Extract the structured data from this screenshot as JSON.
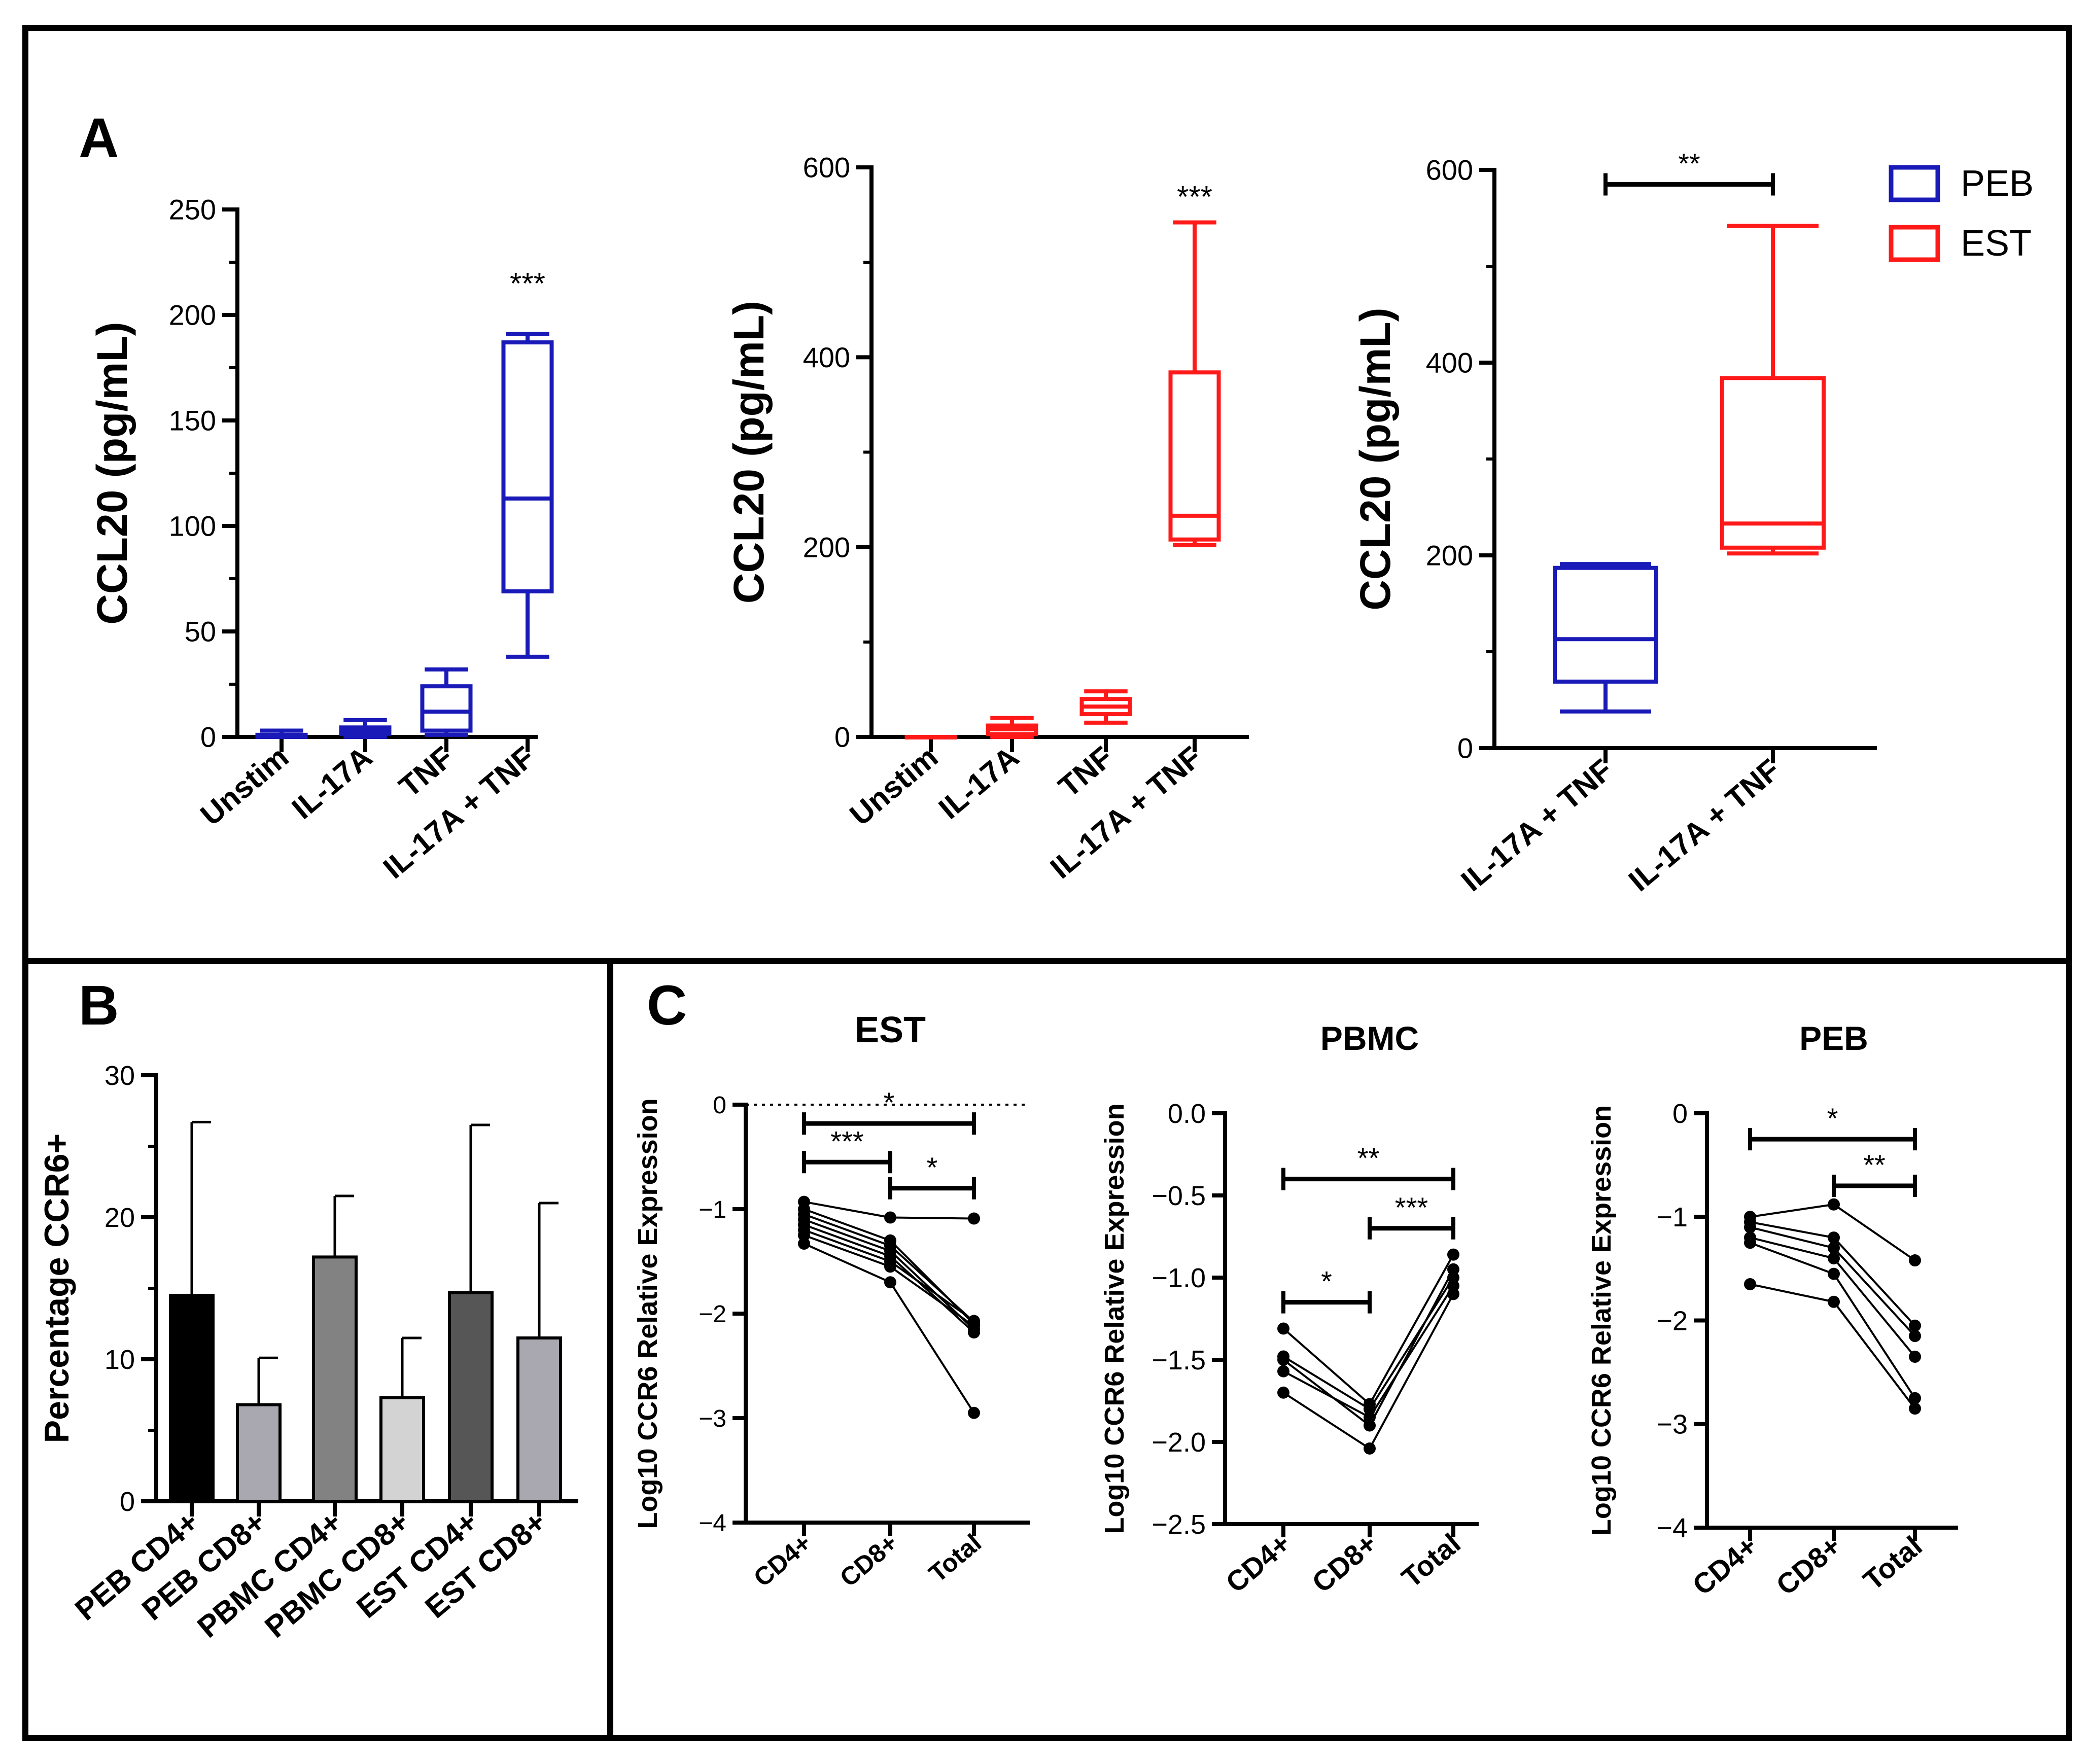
{
  "panel_labels": {
    "a": "A",
    "b": "B",
    "c": "C"
  },
  "colors": {
    "peb": "#1a1ab8",
    "est": "#ff1a1a"
  },
  "chart_data": [
    {
      "id": "A1",
      "type": "box",
      "color": "#1a1ab8",
      "ylabel": "CCL20 (pg/mL)",
      "ylim": [
        0,
        250
      ],
      "yticks": [
        0,
        50,
        100,
        150,
        200,
        250
      ],
      "ytick_labels": [
        "0",
        "50",
        "100",
        "150",
        "200",
        "250"
      ],
      "minor_ticks": [
        25,
        75,
        125,
        175,
        225
      ],
      "categories": [
        "Unstim",
        "IL-17A",
        "TNF",
        "IL-17A + TNF"
      ],
      "boxes": [
        {
          "min": 0,
          "q1": 0,
          "median": 0.5,
          "q3": 1,
          "max": 3
        },
        {
          "min": 0,
          "q1": 1.5,
          "median": 3,
          "q3": 4.5,
          "max": 8
        },
        {
          "min": 1,
          "q1": 3,
          "median": 12,
          "q3": 24,
          "max": 32
        },
        {
          "min": 38,
          "q1": 69,
          "median": 113,
          "q3": 187,
          "max": 191
        }
      ],
      "annotations": [
        {
          "cat": 3,
          "y": 210,
          "text": "***"
        }
      ]
    },
    {
      "id": "A2",
      "type": "box",
      "color": "#ff1a1a",
      "ylabel": "CCL20 (pg/mL)",
      "ylim": [
        0,
        600
      ],
      "yticks": [
        0,
        200,
        400,
        600
      ],
      "ytick_labels": [
        "0",
        "200",
        "400",
        "600"
      ],
      "minor_ticks": [
        100,
        300,
        500
      ],
      "categories": [
        "Unstim",
        "IL-17A",
        "TNF",
        "IL-17A + TNF"
      ],
      "boxes": [
        {
          "min": 0,
          "q1": 0,
          "median": 0,
          "q3": 0,
          "max": 0
        },
        {
          "min": 0,
          "q1": 3,
          "median": 8,
          "q3": 12,
          "max": 20
        },
        {
          "min": 15,
          "q1": 24,
          "median": 32,
          "q3": 40,
          "max": 48
        },
        {
          "min": 202,
          "q1": 208,
          "median": 233,
          "q3": 384,
          "max": 542
        }
      ],
      "annotations": [
        {
          "cat": 3,
          "y": 558,
          "text": "***"
        }
      ]
    },
    {
      "id": "A3",
      "type": "box",
      "ylabel": "CCL20 (pg/mL)",
      "ylim": [
        0,
        600
      ],
      "yticks": [
        0,
        200,
        400,
        600
      ],
      "ytick_labels": [
        "0",
        "200",
        "400",
        "600"
      ],
      "minor_ticks": [
        100,
        300,
        500
      ],
      "categories": [
        "IL-17A + TNF",
        "IL-17A + TNF"
      ],
      "boxes": [
        {
          "min": 38,
          "q1": 69,
          "median": 113,
          "q3": 187,
          "max": 191,
          "color": "#1a1ab8"
        },
        {
          "min": 202,
          "q1": 208,
          "median": 233,
          "q3": 384,
          "max": 542,
          "color": "#ff1a1a"
        }
      ],
      "brackets": [
        {
          "from": 0,
          "to": 1,
          "y": 585,
          "text": "**"
        }
      ],
      "legend": [
        {
          "label": "PEB",
          "color": "#1a1ab8"
        },
        {
          "label": "EST",
          "color": "#ff1a1a"
        }
      ],
      "legend_position": "top-right"
    },
    {
      "id": "B",
      "type": "bar",
      "ylabel": "Percentage CCR6+",
      "ylim": [
        0,
        30
      ],
      "yticks": [
        0,
        10,
        20,
        30
      ],
      "ytick_labels": [
        "0",
        "10",
        "20",
        "30"
      ],
      "minor_ticks": [
        5,
        15,
        25
      ],
      "categories": [
        "PEB CD4+",
        "PEB CD8+",
        "PBMC CD4+",
        "PBMC CD8+",
        "EST CD4+",
        "EST CD8+"
      ],
      "values": [
        14.5,
        6.8,
        17.2,
        7.3,
        14.7,
        11.5
      ],
      "errors": [
        12.2,
        3.3,
        4.3,
        4.2,
        11.8,
        9.5
      ],
      "bar_colors": [
        "#000000",
        "#a9a8b0",
        "#828282",
        "#d3d3d3",
        "#565656",
        "#a9a8b0"
      ]
    },
    {
      "id": "C1",
      "type": "paired-line",
      "title": "EST",
      "ylabel": "Log10 CCR6 Relative Expression",
      "ylim": [
        -4,
        0
      ],
      "yticks": [
        0,
        -1,
        -2,
        -3,
        -4
      ],
      "ytick_labels": [
        "0",
        "−1",
        "−2",
        "−3",
        "−4"
      ],
      "categories": [
        "CD4+",
        "CD8+",
        "Total"
      ],
      "reference_line": 0,
      "series": [
        [
          -0.93,
          -1.08,
          -1.09
        ],
        [
          -1.0,
          -1.3,
          -2.1
        ],
        [
          -1.05,
          -1.35,
          -2.08
        ],
        [
          -1.1,
          -1.4,
          -2.15
        ],
        [
          -1.15,
          -1.45,
          -2.18
        ],
        [
          -1.2,
          -1.5,
          -2.07
        ],
        [
          -1.25,
          -1.55,
          -2.12
        ],
        [
          -1.33,
          -1.7,
          -2.95
        ]
      ],
      "brackets": [
        {
          "from": 0,
          "to": 2,
          "y": -0.18,
          "text": "*"
        },
        {
          "from": 0,
          "to": 1,
          "y": -0.55,
          "text": "***"
        },
        {
          "from": 1,
          "to": 2,
          "y": -0.8,
          "text": "*"
        }
      ]
    },
    {
      "id": "C2",
      "type": "paired-line",
      "title": "PBMC",
      "ylabel": "Log10 CCR6 Relative Expression",
      "ylim": [
        -2.5,
        0
      ],
      "yticks": [
        0,
        -0.5,
        -1,
        -1.5,
        -2,
        -2.5
      ],
      "ytick_labels": [
        "0.0",
        "−0.5",
        "−1.0",
        "−1.5",
        "−2.0",
        "−2.5"
      ],
      "categories": [
        "CD4+",
        "CD8+",
        "Total"
      ],
      "series": [
        [
          -1.31,
          -1.77,
          -0.86
        ],
        [
          -1.48,
          -1.8,
          -1.0
        ],
        [
          -1.57,
          -1.85,
          -1.05
        ],
        [
          -1.5,
          -1.9,
          -0.95
        ],
        [
          -1.7,
          -2.04,
          -1.1
        ]
      ],
      "brackets": [
        {
          "from": 0,
          "to": 2,
          "y": -0.4,
          "text": "**"
        },
        {
          "from": 1,
          "to": 2,
          "y": -0.7,
          "text": "***"
        },
        {
          "from": 0,
          "to": 1,
          "y": -1.15,
          "text": "*"
        }
      ]
    },
    {
      "id": "C3",
      "type": "paired-line",
      "title": "PEB",
      "ylabel": "Log10 CCR6 Relative Expression",
      "ylim": [
        -4,
        0
      ],
      "yticks": [
        0,
        -1,
        -2,
        -3,
        -4
      ],
      "ytick_labels": [
        "0",
        "−1",
        "−2",
        "−3",
        "−4"
      ],
      "categories": [
        "CD4+",
        "CD8+",
        "Total"
      ],
      "series": [
        [
          -1.0,
          -0.88,
          -1.42
        ],
        [
          -1.05,
          -1.2,
          -2.05
        ],
        [
          -1.1,
          -1.3,
          -2.15
        ],
        [
          -1.2,
          -1.4,
          -2.35
        ],
        [
          -1.25,
          -1.55,
          -2.75
        ],
        [
          -1.65,
          -1.82,
          -2.85
        ]
      ],
      "brackets": [
        {
          "from": 0,
          "to": 2,
          "y": -0.25,
          "text": "*"
        },
        {
          "from": 1,
          "to": 2,
          "y": -0.7,
          "text": "**"
        }
      ]
    }
  ]
}
